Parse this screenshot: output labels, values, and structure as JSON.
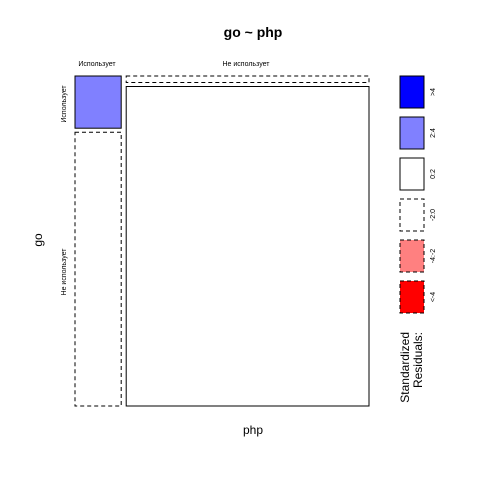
{
  "chart_data": {
    "type": "mosaic",
    "title": "go ~ php",
    "xlabel": "php",
    "ylabel": "go",
    "x_variable": "php",
    "y_variable": "go",
    "x_levels": [
      "Использует",
      "Не использует"
    ],
    "y_levels": [
      "Использует",
      "Не использует"
    ],
    "cells": [
      {
        "x": "Использует",
        "y": "Использует",
        "proportion": 0.16,
        "residual_bin": "2:4",
        "fill": "#8080ff",
        "dashed": false
      },
      {
        "x": "Использует",
        "y": "Не использует",
        "proportion": 0.84,
        "residual_bin": "-2:0",
        "fill": "#ffffff",
        "dashed": true
      },
      {
        "x": "Не использует",
        "y": "Использует",
        "proportion": 0.02,
        "residual_bin": "-2:0",
        "fill": "#ffffff",
        "dashed": true
      },
      {
        "x": "Не использует",
        "y": "Не использует",
        "proportion": 0.98,
        "residual_bin": "0:2",
        "fill": "#ffffff",
        "dashed": false
      }
    ],
    "x_proportions": [
      0.16,
      0.84
    ],
    "legend": {
      "title_line1": "Standardized",
      "title_line2": "Residuals:",
      "placement": "right",
      "bins": [
        {
          "label": ">4",
          "fill": "#0000ff",
          "dashed": false
        },
        {
          "label": "2:4",
          "fill": "#8080ff",
          "dashed": false
        },
        {
          "label": "0:2",
          "fill": "#ffffff",
          "dashed": false
        },
        {
          "label": "-2:0",
          "fill": "#ffffff",
          "dashed": true
        },
        {
          "label": "-4:-2",
          "fill": "#ff8080",
          "dashed": true
        },
        {
          "label": "<-4",
          "fill": "#ff0000",
          "dashed": true
        }
      ]
    }
  }
}
